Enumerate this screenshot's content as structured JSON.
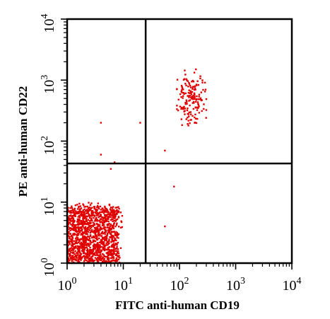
{
  "chart_data": {
    "type": "scatter",
    "xlabel": "FITC anti-human CD19",
    "ylabel": "PE anti-human CD22",
    "xscale": "log",
    "yscale": "log",
    "xlim": [
      1,
      10000
    ],
    "ylim": [
      1,
      10000
    ],
    "x_ticks": [
      {
        "base": "10",
        "exp": "0"
      },
      {
        "base": "10",
        "exp": "1"
      },
      {
        "base": "10",
        "exp": "2"
      },
      {
        "base": "10",
        "exp": "3"
      },
      {
        "base": "10",
        "exp": "4"
      }
    ],
    "y_ticks": [
      {
        "base": "10",
        "exp": "0"
      },
      {
        "base": "10",
        "exp": "1"
      },
      {
        "base": "10",
        "exp": "2"
      },
      {
        "base": "10",
        "exp": "3"
      },
      {
        "base": "10",
        "exp": "4"
      }
    ],
    "gates": {
      "x": 25,
      "y": 43
    },
    "point_color": "#e00000",
    "populations": [
      {
        "x_range": [
          1,
          10
        ],
        "y_range": [
          1,
          12
        ]
      },
      {
        "x_range": [
          90,
          300
        ],
        "y_range": [
          180,
          1500
        ]
      }
    ],
    "outliers": [
      {
        "x": 4,
        "y": 200
      },
      {
        "x": 4,
        "y": 60
      },
      {
        "x": 7,
        "y": 45
      },
      {
        "x": 20,
        "y": 200
      },
      {
        "x": 55,
        "y": 70
      },
      {
        "x": 80,
        "y": 18
      },
      {
        "x": 55,
        "y": 4
      },
      {
        "x": 6,
        "y": 35
      }
    ]
  }
}
